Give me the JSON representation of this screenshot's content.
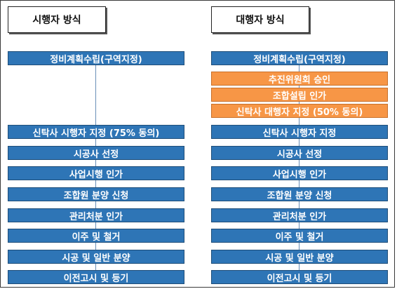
{
  "left": {
    "title": "시행자 방식",
    "steps": [
      {
        "label": "정비계획수립(구역지정)",
        "color": "blue"
      },
      {
        "label": "신탁사 시행자 지정 (75% 동의)",
        "color": "blue"
      },
      {
        "label": "시공사 선정",
        "color": "blue"
      },
      {
        "label": "사업시행 인가",
        "color": "blue"
      },
      {
        "label": "조합원 분양 신청",
        "color": "blue"
      },
      {
        "label": "관리처분 인가",
        "color": "blue"
      },
      {
        "label": "이주 및 철거",
        "color": "blue"
      },
      {
        "label": "시공 및 일반 분양",
        "color": "blue"
      },
      {
        "label": "이전고시 및 등기",
        "color": "blue"
      }
    ]
  },
  "right": {
    "title": "대행자 방식",
    "steps": [
      {
        "label": "정비계획수립(구역지정)",
        "color": "blue"
      },
      {
        "label": "추진위원회 승인",
        "color": "orange"
      },
      {
        "label": "조합설립 인가",
        "color": "orange"
      },
      {
        "label": "신탁사 대행자 지정 (50% 동의)",
        "color": "orange"
      },
      {
        "label": "신탁사 시행자 지정",
        "color": "blue"
      },
      {
        "label": "시공사 선정",
        "color": "blue"
      },
      {
        "label": "사업시행 인가",
        "color": "blue"
      },
      {
        "label": "조합원 분양 신청",
        "color": "blue"
      },
      {
        "label": "관리처분 인가",
        "color": "blue"
      },
      {
        "label": "이주 및 철거",
        "color": "blue"
      },
      {
        "label": "시공 및 일반 분양",
        "color": "blue"
      },
      {
        "label": "이전고시 및 등기",
        "color": "blue"
      }
    ]
  },
  "colors": {
    "blue": "#2e75b6",
    "orange": "#f79646"
  }
}
